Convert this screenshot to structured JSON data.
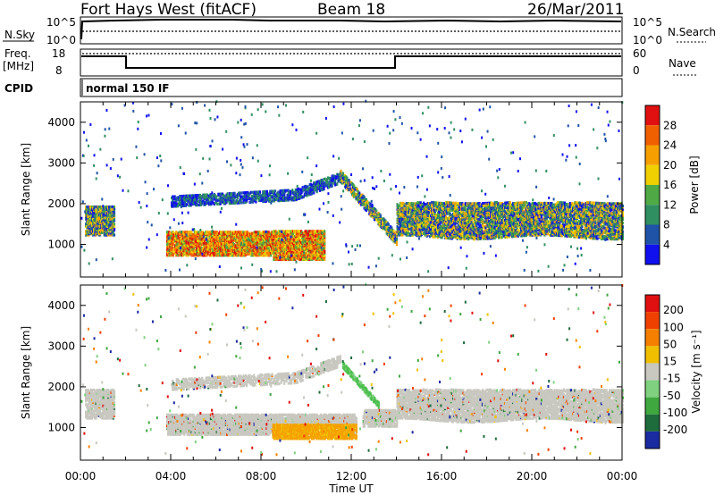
{
  "header": {
    "station": "Fort Hays West (fitACF)",
    "beam": "Beam 18",
    "date": "26/Mar/2011"
  },
  "top_panels": {
    "nsky_label": "N.Sky",
    "nsky_top": "10^5",
    "nsky_bottom": "10^0",
    "nsearch_label": "N.Search",
    "nsearch_top": "10^5",
    "nsearch_bottom": "10^0",
    "freq_label_1": "Freq.",
    "freq_label_2": "[MHz]",
    "freq_top": "18",
    "freq_bottom": "8",
    "nave_label": "Nave",
    "nave_top": "60",
    "nave_bottom": "0",
    "cpid_label": "CPID",
    "cpid_value": "normal 150 IF"
  },
  "chart_data": [
    {
      "type": "heatmap",
      "name": "power",
      "ylabel": "Slant Range [km]",
      "xlabel": "Time UT",
      "xlim": [
        0,
        24
      ],
      "ylim": [
        200,
        4500
      ],
      "x_tick_labels": [
        "00:00",
        "04:00",
        "08:00",
        "12:00",
        "16:00",
        "20:00",
        "00:00"
      ],
      "y_tick_labels": [
        "1000",
        "2000",
        "3000",
        "4000"
      ],
      "colorbar": {
        "label": "Power [dB]",
        "ticks": [
          "4",
          "8",
          "12",
          "16",
          "20",
          "24",
          "28"
        ],
        "colors": [
          "#1010ee",
          "#1f53a8",
          "#2f8f60",
          "#4faa45",
          "#f0d000",
          "#f5a000",
          "#f06000",
          "#e01010"
        ]
      },
      "regions": [
        {
          "desc": "near-range band",
          "time": [
            0.2,
            1.5
          ],
          "range": [
            1200,
            1900
          ],
          "level": "mid"
        },
        {
          "desc": "main E/F band",
          "time": [
            3.8,
            10.5
          ],
          "range": [
            700,
            1300
          ],
          "level": "high"
        },
        {
          "desc": "ascending arc",
          "time": [
            4.0,
            11.5
          ],
          "range": [
            1900,
            2600
          ],
          "level": "low"
        },
        {
          "desc": "descending arc",
          "time": [
            11.5,
            14.0
          ],
          "range": [
            1000,
            2500
          ],
          "level": "mid"
        },
        {
          "desc": "night band",
          "time": [
            14.0,
            24.0
          ],
          "range": [
            1100,
            2000
          ],
          "level": "mid"
        }
      ]
    },
    {
      "type": "heatmap",
      "name": "velocity",
      "ylabel": "Slant Range [km]",
      "xlabel": "Time UT",
      "xlim": [
        0,
        24
      ],
      "ylim": [
        200,
        4500
      ],
      "x_tick_labels": [
        "00:00",
        "04:00",
        "08:00",
        "12:00",
        "16:00",
        "20:00",
        "00:00"
      ],
      "y_tick_labels": [
        "1000",
        "2000",
        "3000",
        "4000"
      ],
      "colorbar": {
        "label": "Velocity [m s⁻¹]",
        "ticks": [
          "200",
          "100",
          "50",
          "15",
          "-15",
          "-50",
          "-100",
          "-200"
        ],
        "colors": [
          "#1a2aa0",
          "#1e6b3c",
          "#3fa83f",
          "#7fd07f",
          "#c8c8c0",
          "#f0c000",
          "#f58000",
          "#f04000",
          "#e01010"
        ]
      },
      "regions": [
        {
          "desc": "ground scatter",
          "time": [
            0.2,
            14.0
          ],
          "range": [
            900,
            1600
          ],
          "level": "grey"
        },
        {
          "desc": "negative velocity patch",
          "time": [
            8.5,
            12.2
          ],
          "range": [
            700,
            1100
          ],
          "level": "orange"
        },
        {
          "desc": "positive velocity streak",
          "time": [
            11.8,
            13.0
          ],
          "range": [
            1300,
            2100
          ],
          "level": "green"
        },
        {
          "desc": "night ground scatter",
          "time": [
            14.0,
            24.0
          ],
          "range": [
            1100,
            1900
          ],
          "level": "grey"
        }
      ]
    }
  ]
}
